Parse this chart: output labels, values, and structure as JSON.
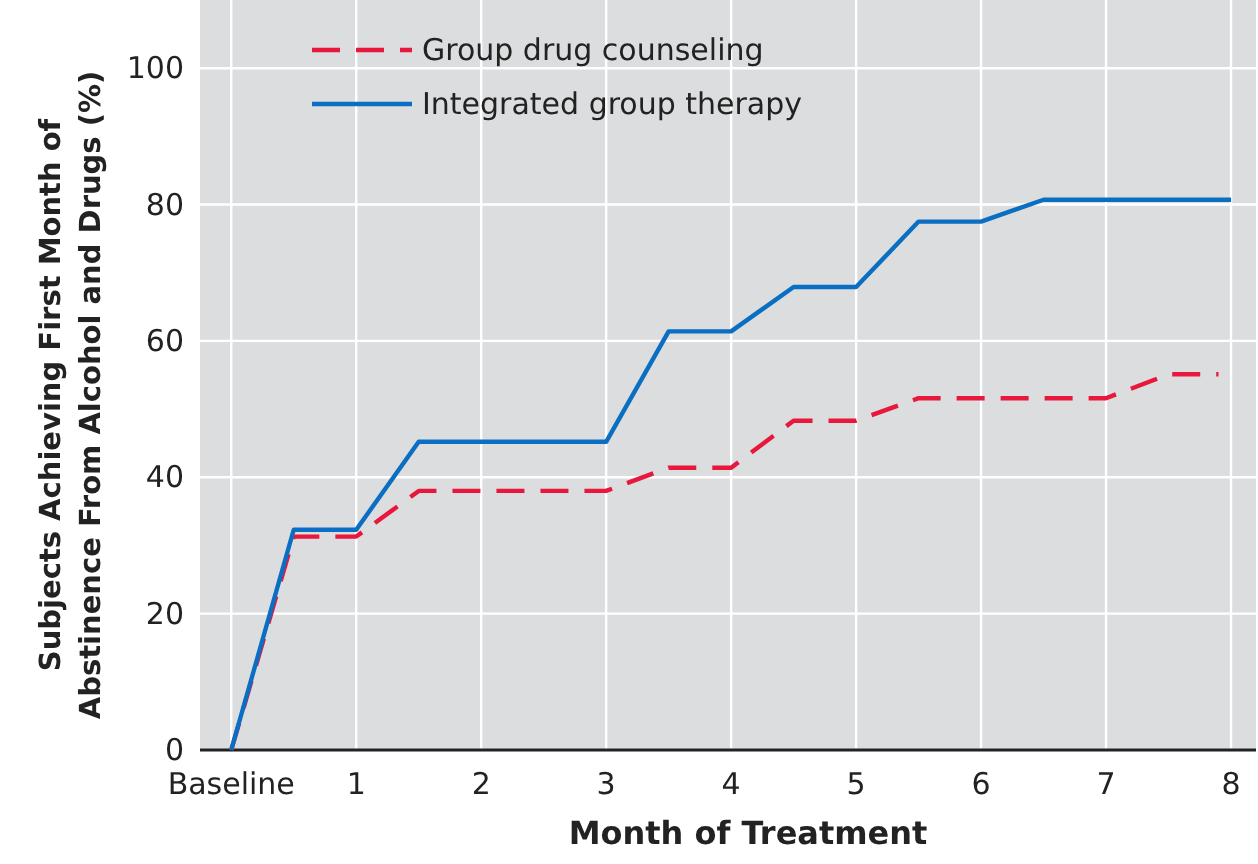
{
  "chart_data": {
    "type": "line",
    "xlabel": "Month of Treatment",
    "ylabel": "Subjects Achieving First Month of Abstinence From Alcohol and Drugs (%)",
    "xlim": [
      -0.25,
      8.2
    ],
    "xticks": [
      {
        "value": 0,
        "label": "Baseline"
      },
      1,
      2,
      3,
      4,
      5,
      6,
      7,
      8
    ],
    "ylim": [
      0,
      110
    ],
    "yticks": [
      0,
      20,
      40,
      60,
      80,
      100
    ],
    "grid": true,
    "legend": "top left",
    "marker": "none",
    "series": [
      {
        "name": "Group drug counseling",
        "color": "#e8173c",
        "line_style": "dashed",
        "x": [
          0,
          0.5,
          1,
          1.5,
          3,
          3.5,
          4,
          4.5,
          5,
          5.5,
          7,
          7.5,
          7.9
        ],
        "values": [
          0,
          31.3,
          31.3,
          38,
          38,
          41.4,
          41.4,
          48.3,
          48.3,
          51.6,
          51.6,
          55.1,
          55.1
        ]
      },
      {
        "name": "Integrated group therapy",
        "color": "#0a6fc2",
        "line_style": "solid",
        "x": [
          0,
          0.5,
          1,
          1.5,
          3,
          3.5,
          4,
          4.5,
          5,
          5.5,
          6,
          6.5,
          8
        ],
        "values": [
          0,
          32.3,
          32.3,
          45.2,
          45.2,
          61.4,
          61.4,
          67.9,
          67.9,
          77.5,
          77.5,
          80.7,
          80.7
        ]
      }
    ]
  }
}
